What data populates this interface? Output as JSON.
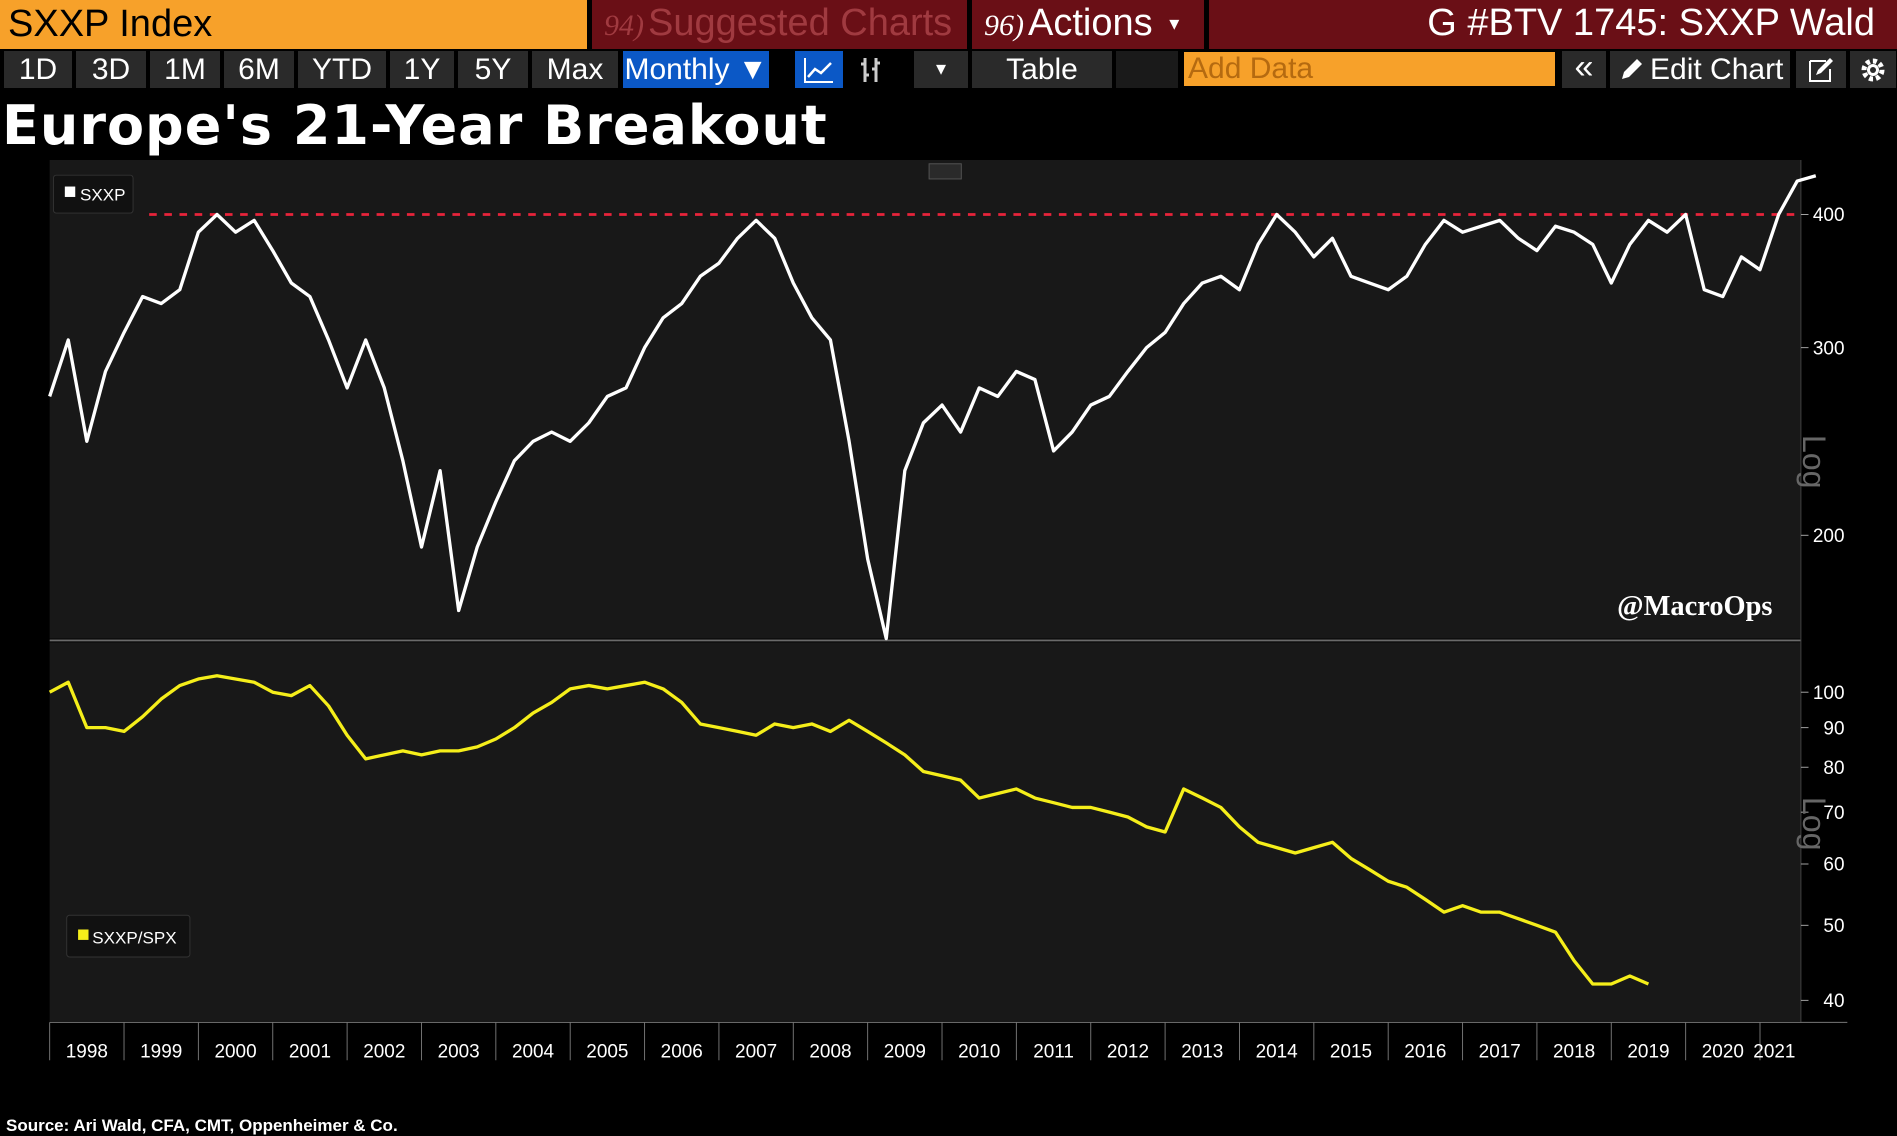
{
  "header": {
    "security": "SXXP Index",
    "suggested_num": "94)",
    "suggested_label": "Suggested Charts",
    "actions_num": "96)",
    "actions_label": "Actions",
    "actions_caret": "▾",
    "right_title": "G #BTV 1745: SXXP Wald"
  },
  "toolbar": {
    "periods": [
      "1D",
      "3D",
      "1M",
      "6M",
      "YTD",
      "1Y",
      "5Y",
      "Max"
    ],
    "frequency": "Monthly ▼",
    "table_label": "Table",
    "add_data_placeholder": "Add Data",
    "edit_chart_label": "Edit Chart",
    "dropdown_caret": "▾",
    "collapse_icon": "«"
  },
  "headline": "Europe's 21-Year Breakout",
  "watermark": "@MacroOps",
  "source": "Source: Ari Wald, CFA, CMT, Oppenheimer & Co.",
  "colors": {
    "accent_orange": "#f7a12a",
    "header_red": "#6a0f16",
    "active_blue": "#0b58c6",
    "sxxp_line": "#ffffff",
    "ratio_line": "#f5ee1a",
    "breakout_line": "#e8233a"
  },
  "chart_data": [
    {
      "type": "line",
      "title": "SXXP",
      "legend": "SXXP",
      "scale_label": "Log",
      "ylim": [
        160,
        450
      ],
      "yticks": [
        200,
        300,
        400
      ],
      "reference_line": 400,
      "x_start": 1998.0,
      "x_step": 0.25,
      "series": [
        {
          "name": "SXXP",
          "values": [
            270,
            305,
            245,
            285,
            310,
            335,
            330,
            340,
            385,
            400,
            385,
            395,
            370,
            345,
            335,
            305,
            275,
            305,
            275,
            235,
            195,
            230,
            170,
            195,
            215,
            235,
            245,
            250,
            245,
            255,
            270,
            275,
            300,
            320,
            330,
            350,
            360,
            380,
            395,
            380,
            345,
            320,
            305,
            245,
            190,
            160,
            230,
            255,
            265,
            250,
            275,
            270,
            285,
            280,
            240,
            250,
            265,
            270,
            285,
            300,
            310,
            330,
            345,
            350,
            340,
            375,
            400,
            385,
            365,
            380,
            350,
            345,
            340,
            350,
            375,
            395,
            385,
            390,
            395,
            380,
            370,
            390,
            385,
            375,
            345,
            375,
            395,
            385,
            400,
            340,
            335,
            365,
            355,
            400,
            430,
            435
          ]
        }
      ]
    },
    {
      "type": "line",
      "title": "SXXP/SPX",
      "legend": "SXXP/SPX",
      "scale_label": "Log",
      "ylim": [
        38,
        115
      ],
      "yticks": [
        40,
        50,
        60,
        70,
        80,
        90,
        100
      ],
      "x_start": 1998.0,
      "x_step": 0.25,
      "series": [
        {
          "name": "SXXP/SPX",
          "values": [
            100,
            103,
            90,
            90,
            89,
            93,
            98,
            102,
            104,
            105,
            104,
            103,
            100,
            99,
            102,
            96,
            88,
            82,
            83,
            84,
            83,
            84,
            84,
            85,
            87,
            90,
            94,
            97,
            101,
            102,
            101,
            102,
            103,
            101,
            97,
            91,
            90,
            89,
            88,
            91,
            90,
            91,
            89,
            92,
            89,
            86,
            83,
            79,
            78,
            77,
            73,
            74,
            75,
            73,
            72,
            71,
            71,
            70,
            69,
            67,
            66,
            75,
            73,
            71,
            67,
            64,
            63,
            62,
            63,
            64,
            61,
            59,
            57,
            56,
            54,
            52,
            53,
            52,
            52,
            51,
            50,
            49,
            45,
            42,
            42,
            43,
            42
          ]
        }
      ]
    }
  ],
  "x_axis": {
    "ticks": [
      "1998",
      "1999",
      "2000",
      "2001",
      "2002",
      "2003",
      "2004",
      "2005",
      "2006",
      "2007",
      "2008",
      "2009",
      "2010",
      "2011",
      "2012",
      "2013",
      "2014",
      "2015",
      "2016",
      "2017",
      "2018",
      "2019",
      "2020",
      "2021"
    ]
  }
}
